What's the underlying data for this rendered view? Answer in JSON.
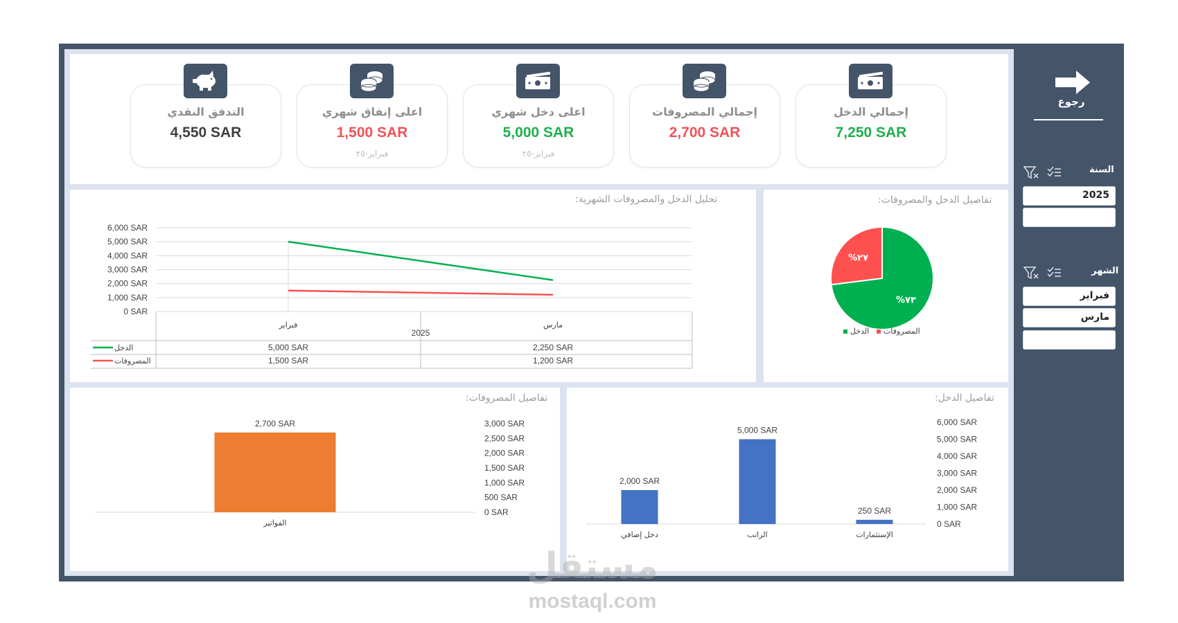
{
  "sidebar": {
    "back_label": "رجوع",
    "year_label": "السنة",
    "years": [
      "2025",
      ""
    ],
    "month_label": "الشهر",
    "months": [
      "فبراير",
      "مارس",
      ""
    ]
  },
  "kpis": [
    {
      "title": "إجمالي الدخل",
      "value": "7,250 SAR",
      "sub": "",
      "color": "#1faf4b",
      "icon": "cash-icon"
    },
    {
      "title": "إجمالي المصروفات",
      "value": "2,700 SAR",
      "sub": "",
      "color": "#f0525a",
      "icon": "coins-icon"
    },
    {
      "title": "اعلى دخل شهري",
      "value": "5,000 SAR",
      "sub": "فبراير-٢٥",
      "color": "#1faf4b",
      "icon": "cash-icon"
    },
    {
      "title": "اعلى إنفاق شهري",
      "value": "1,500 SAR",
      "sub": "فبراير-٢٥",
      "color": "#f0525a",
      "icon": "coins-icon"
    },
    {
      "title": "التدفق النقدي",
      "value": "4,550 SAR",
      "sub": "",
      "color": "#3f3f3f",
      "icon": "piggy-bank-icon"
    }
  ],
  "panels": {
    "line_title": "تحليل الدخل والمصروفات الشهرية:",
    "pie_title": "تفاصيل الدخل والمصروفات:",
    "expense_title": "تفاصيل المصروفات:",
    "income_title": "تفاصيل الدخل:"
  },
  "colors": {
    "income": "#00b050",
    "expense": "#ff5050",
    "bar_orange": "#ed7d31",
    "bar_blue": "#4472c4",
    "sidebar": "#445469"
  },
  "chart_data": [
    {
      "type": "line",
      "title": "تحليل الدخل والمصروفات الشهرية:",
      "categories": [
        "فبراير",
        "مارس"
      ],
      "group_label": "2025",
      "y_ticks": [
        "0 SAR",
        "1,000 SAR",
        "2,000 SAR",
        "3,000 SAR",
        "4,000 SAR",
        "5,000 SAR",
        "6,000 SAR"
      ],
      "ylim": [
        0,
        6000
      ],
      "series": [
        {
          "name": "الدخل",
          "values": [
            5000,
            2250
          ],
          "labels": [
            "5,000 SAR",
            "2,250 SAR"
          ]
        },
        {
          "name": "المصروفات",
          "values": [
            1500,
            1200
          ],
          "labels": [
            "1,500 SAR",
            "1,200 SAR"
          ]
        }
      ]
    },
    {
      "type": "pie",
      "title": "تفاصيل الدخل والمصروفات:",
      "slices": [
        {
          "name": "الدخل",
          "value": 73,
          "label": "%٧٣"
        },
        {
          "name": "المصروفات",
          "value": 27,
          "label": "%٢٧"
        }
      ],
      "legend": "bottom"
    },
    {
      "type": "bar",
      "title": "تفاصيل المصروفات:",
      "categories": [
        "الفواتير"
      ],
      "values": [
        2700
      ],
      "value_labels": [
        "2,700 SAR"
      ],
      "y_ticks": [
        "0 SAR",
        "500 SAR",
        "1,000 SAR",
        "1,500 SAR",
        "2,000 SAR",
        "2,500 SAR",
        "3,000 SAR"
      ],
      "ylim": [
        0,
        3000
      ]
    },
    {
      "type": "bar",
      "title": "تفاصيل الدخل:",
      "categories": [
        "دخل إضافي",
        "الراتب",
        "الإستثمارات"
      ],
      "values": [
        2000,
        5000,
        250
      ],
      "value_labels": [
        "2,000 SAR",
        "5,000 SAR",
        "250 SAR"
      ],
      "y_ticks": [
        "0 SAR",
        "1,000 SAR",
        "2,000 SAR",
        "3,000 SAR",
        "4,000 SAR",
        "5,000 SAR",
        "6,000 SAR"
      ],
      "ylim": [
        0,
        6000
      ]
    }
  ],
  "watermark": {
    "logo": "مستقل",
    "site": "mostaql.com"
  }
}
